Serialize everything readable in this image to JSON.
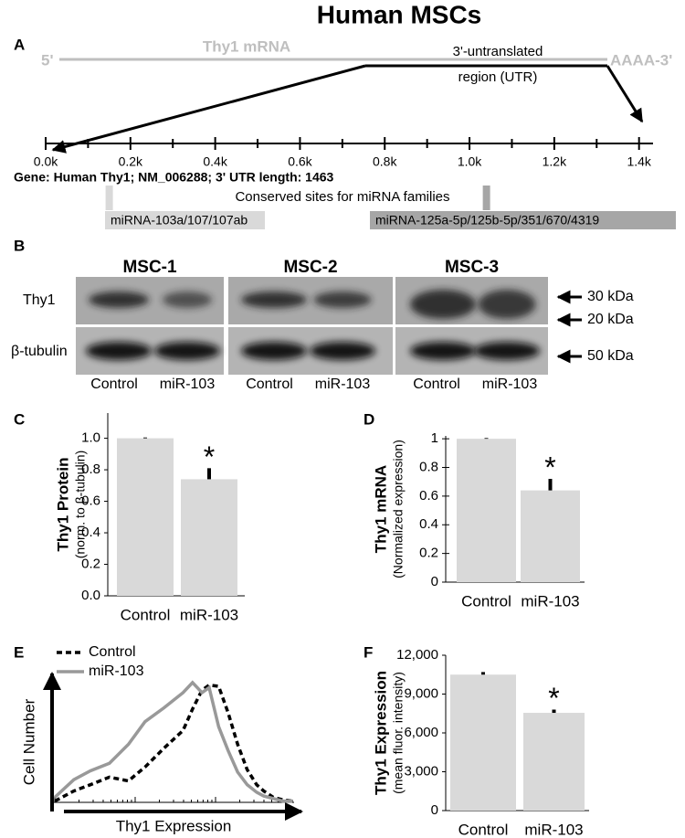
{
  "title": "Human MSCs",
  "panel_a": {
    "label": "A",
    "five_prime": "5'",
    "mrna_label": "Thy1 mRNA",
    "utr_label": [
      "3'-untranslated",
      "region (UTR)"
    ],
    "poly_a": "AAAA-3'",
    "xlim": [
      0,
      1433
    ],
    "xticks": [
      {
        "value": 0,
        "label": "0.0k"
      },
      {
        "value": 200,
        "label": "0.2k"
      },
      {
        "value": 400,
        "label": "0.4k"
      },
      {
        "value": 600,
        "label": "0.6k"
      },
      {
        "value": 800,
        "label": "0.8k"
      },
      {
        "value": 1000,
        "label": "1.0k"
      },
      {
        "value": 1200,
        "label": "1.2k"
      },
      {
        "value": 1400,
        "label": "1.4k"
      }
    ],
    "minor_ticks": [
      100,
      300,
      500,
      700,
      900,
      1100,
      1300
    ],
    "gene_info": "Gene: Human Thy1; NM_006288;  3' UTR length: 1463",
    "sites_caption": "Conserved sites for miRNA families",
    "sites": [
      {
        "name": "miRNA-103a/107/107ab",
        "position": 150,
        "color": "#d9d9d9"
      },
      {
        "name": "miRNA-125a-5p/125b-5p/351/670/4319",
        "position": 1040,
        "color": "#a6a6a6"
      }
    ]
  },
  "panel_b": {
    "label": "B",
    "groups": [
      "MSC-1",
      "MSC-2",
      "MSC-3"
    ],
    "rows": [
      "Thy1",
      "β-tubulin"
    ],
    "lanes": [
      "Control",
      "miR-103",
      "Control",
      "miR-103",
      "Control",
      "miR-103"
    ],
    "markers": [
      "30 kDa",
      "20 kDa",
      "50 kDa"
    ]
  },
  "panel_c": {
    "label": "C",
    "type": "bar",
    "y_label": "Thy1 Protein",
    "y_sublabel": "(norm. to β-tubulin)",
    "categories": [
      "Control",
      "miR-103"
    ],
    "values": [
      1.0,
      0.74
    ],
    "errors": [
      0.005,
      0.07
    ],
    "annotation": "*",
    "color": "#d9d9d9",
    "ylim": [
      0,
      1.16
    ],
    "yticks": [
      {
        "value": 0,
        "label": "0.0"
      },
      0.2,
      0.4,
      0.6,
      0.8,
      {
        "value": 1,
        "label": "1.0"
      }
    ]
  },
  "panel_d": {
    "label": "D",
    "type": "bar",
    "y_label": "Thy1 mRNA",
    "y_sublabel": "(Normalized expression)",
    "categories": [
      "Control",
      "miR-103"
    ],
    "values": [
      1.0,
      0.64
    ],
    "errors": [
      0.005,
      0.08
    ],
    "annotation": "*",
    "color": "#d9d9d9",
    "ylim": [
      0,
      1.02
    ],
    "yticks": [
      0,
      0.2,
      0.4,
      0.6,
      0.8,
      1
    ]
  },
  "panel_e": {
    "label": "E",
    "type": "line",
    "y_label": "Cell Number",
    "x_label": "Thy1 Expression",
    "x": [
      0,
      8,
      15,
      23,
      31,
      38,
      46,
      54,
      58,
      62,
      65,
      69,
      73,
      77,
      81,
      85,
      88,
      92,
      96,
      100
    ],
    "xlim": [
      0,
      100
    ],
    "ylim": [
      0,
      100
    ],
    "series": [
      {
        "name": "Control",
        "color": "#000000",
        "dashed": true,
        "values": [
          1,
          9,
          14,
          20,
          17,
          28,
          43,
          57,
          74,
          89,
          93,
          92,
          71,
          46,
          26,
          14,
          9,
          4,
          2,
          1
        ]
      },
      {
        "name": "miR-103",
        "color": "#999999",
        "dashed": false,
        "values": [
          4,
          18,
          25,
          31,
          46,
          64,
          75,
          87,
          95,
          87,
          91,
          60,
          41,
          24,
          14,
          8,
          5,
          3,
          1,
          1
        ]
      }
    ]
  },
  "panel_f": {
    "label": "F",
    "type": "bar",
    "y_label": "Thy1 Expression",
    "y_sublabel": "(mean fluor. intensity)",
    "categories": [
      "Control",
      "miR-103"
    ],
    "values": [
      10500,
      7550
    ],
    "errors": [
      200,
      250
    ],
    "annotation": "*",
    "color": "#d9d9d9",
    "ylim": [
      0,
      12000
    ],
    "yticks": [
      0,
      {
        "value": 3000,
        "label": "3,000"
      },
      {
        "value": 6000,
        "label": "6,000"
      },
      {
        "value": 9000,
        "label": "9,000"
      },
      {
        "value": 12000,
        "label": "12,000"
      }
    ]
  }
}
